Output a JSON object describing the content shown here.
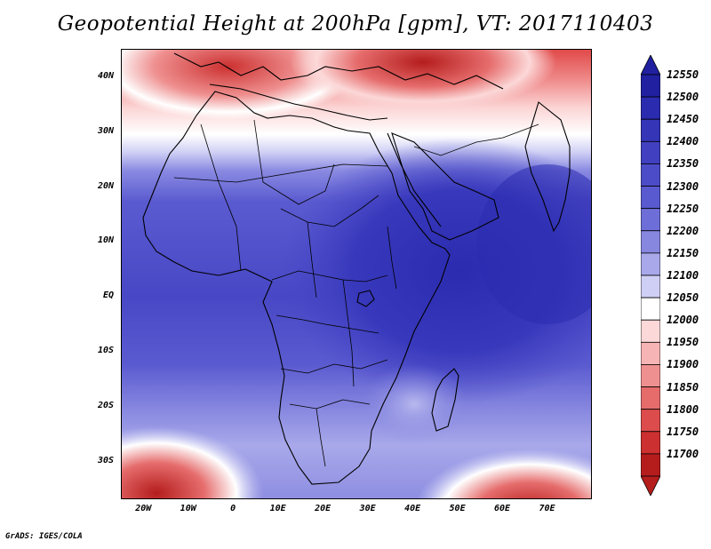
{
  "title": "Geopotential Height at 200hPa [gpm], VT: 2017110403",
  "footer": "GrADS: IGES/COLA",
  "map": {
    "lon_range": [
      -25,
      80
    ],
    "lat_range": [
      -37,
      45
    ],
    "lat_ticks": [
      {
        "value": 40,
        "label": "40N"
      },
      {
        "value": 30,
        "label": "30N"
      },
      {
        "value": 20,
        "label": "20N"
      },
      {
        "value": 10,
        "label": "10N"
      },
      {
        "value": 0,
        "label": "EQ"
      },
      {
        "value": -10,
        "label": "10S"
      },
      {
        "value": -20,
        "label": "20S"
      },
      {
        "value": -30,
        "label": "30S"
      }
    ],
    "lon_ticks": [
      {
        "value": -20,
        "label": "20W"
      },
      {
        "value": -10,
        "label": "10W"
      },
      {
        "value": 0,
        "label": "0"
      },
      {
        "value": 10,
        "label": "10E"
      },
      {
        "value": 20,
        "label": "20E"
      },
      {
        "value": 30,
        "label": "30E"
      },
      {
        "value": 40,
        "label": "40E"
      },
      {
        "value": 50,
        "label": "50E"
      },
      {
        "value": 60,
        "label": "60E"
      },
      {
        "value": 70,
        "label": "70E"
      }
    ]
  },
  "colorbar": {
    "labels": [
      "12550",
      "12500",
      "12450",
      "12400",
      "12350",
      "12300",
      "12250",
      "12200",
      "12150",
      "12100",
      "12050",
      "12000",
      "11950",
      "11900",
      "11850",
      "11800",
      "11750",
      "11700"
    ],
    "colors": [
      "#2020a0",
      "#2b2bb0",
      "#3535b8",
      "#4040c0",
      "#4c4cc8",
      "#5a5ad0",
      "#6e6ed8",
      "#8787e0",
      "#a8a8ea",
      "#cfcff5",
      "#ffffff",
      "#fcd8d8",
      "#f7b4b4",
      "#ef9090",
      "#e66c6c",
      "#dc4c4c",
      "#cc3030",
      "#b51d1d"
    ]
  }
}
